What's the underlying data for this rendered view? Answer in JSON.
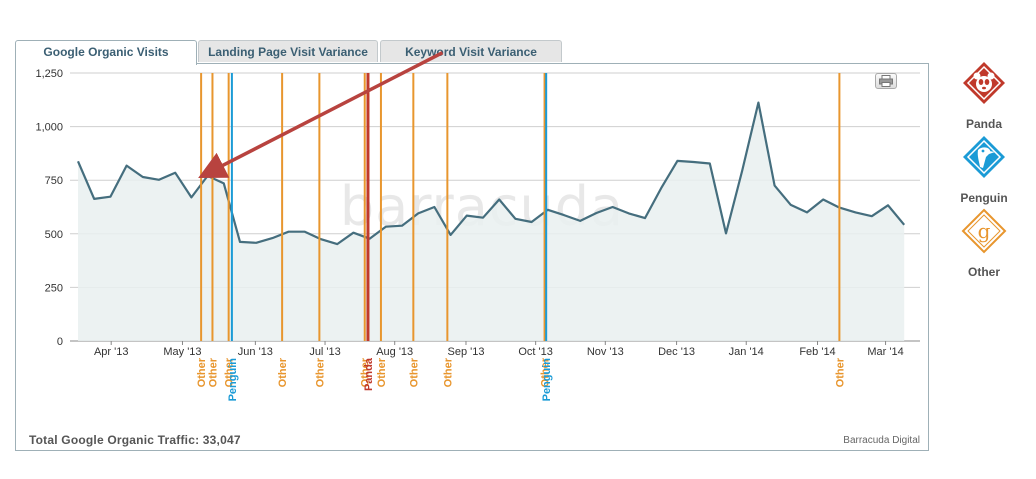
{
  "tabs": [
    {
      "label": "Google Organic Visits",
      "active": true
    },
    {
      "label": "Landing Page Visit Variance",
      "active": false
    },
    {
      "label": "Keyword Visit Variance",
      "active": false
    }
  ],
  "footer": {
    "total_label": "Total Google Organic Traffic: 33,047",
    "brand": "Barracuda Digital"
  },
  "watermark": "barracuda",
  "legend": [
    {
      "label": "Panda",
      "color": "#c0392b",
      "icon": "panda-icon"
    },
    {
      "label": "Penguin",
      "color": "#1b9bd6",
      "icon": "penguin-icon"
    },
    {
      "label": "Other",
      "color": "#e8962e",
      "icon": "google-g-icon"
    }
  ],
  "chart_data": {
    "type": "area",
    "title": "",
    "xlabel": "",
    "ylabel": "",
    "ylim": [
      0,
      1250
    ],
    "yticks": [
      "0",
      "250",
      "500",
      "750",
      "1,000",
      "1,250"
    ],
    "grid": true,
    "x_tick_labels": [
      "Apr '13",
      "May '13",
      "Jun '13",
      "Jul '13",
      "Aug '13",
      "Sep '13",
      "Oct '13",
      "Nov '13",
      "Dec '13",
      "Jan '14",
      "Feb '14",
      "Mar '14"
    ],
    "series": [
      {
        "values": [
          838,
          663,
          673,
          818,
          765,
          752,
          785,
          670,
          770,
          735,
          462,
          458,
          480,
          510,
          510,
          475,
          452,
          505,
          477,
          533,
          538,
          595,
          625,
          495,
          585,
          575,
          660,
          570,
          555,
          612,
          587,
          560,
          597,
          625,
          595,
          573,
          713,
          840,
          835,
          828,
          502,
          795,
          1112,
          725,
          635,
          600,
          660,
          622,
          600,
          582,
          633,
          542
        ],
        "color": "#456e7e"
      }
    ],
    "updates": [
      {
        "type": "Other",
        "label": "Other",
        "week": 7.6
      },
      {
        "type": "Other",
        "label": "Other",
        "week": 8.3
      },
      {
        "type": "Other",
        "label": "Other",
        "week": 9.3
      },
      {
        "type": "Penguin",
        "label": "Penguin",
        "week": 9.5
      },
      {
        "type": "Other",
        "label": "Other",
        "week": 12.6
      },
      {
        "type": "Other",
        "label": "Other",
        "week": 14.9
      },
      {
        "type": "Other",
        "label": "Other",
        "week": 17.7
      },
      {
        "type": "Panda",
        "label": "Panda",
        "week": 17.9
      },
      {
        "type": "Other",
        "label": "Other",
        "week": 18.7
      },
      {
        "type": "Other",
        "label": "Other",
        "week": 20.7
      },
      {
        "type": "Other",
        "label": "Other",
        "week": 22.8
      },
      {
        "type": "Other",
        "label": "Other",
        "week": 28.8
      },
      {
        "type": "Penguin",
        "label": "Penguin",
        "week": 28.9
      },
      {
        "type": "Other",
        "label": "Other",
        "week": 47.0
      }
    ],
    "annotation": {
      "type": "arrow",
      "from_week": 22.5,
      "from_value": 1345,
      "to_week": 7.8,
      "to_value": 775
    }
  }
}
